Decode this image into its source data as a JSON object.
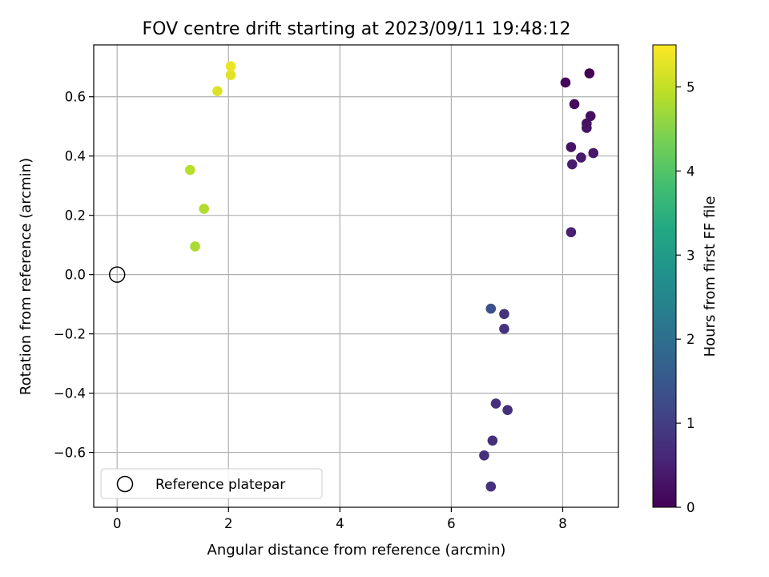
{
  "chart_data": {
    "type": "scatter",
    "title": "FOV centre drift starting at 2023/09/11 19:48:12",
    "xlabel": "Angular distance from reference (arcmin)",
    "ylabel": "Rotation from reference (arcmin)",
    "xlim": [
      -0.42,
      9.0
    ],
    "ylim": [
      -0.785,
      0.775
    ],
    "xticks": [
      0,
      2,
      4,
      6,
      8
    ],
    "xtick_labels": [
      "0",
      "2",
      "4",
      "6",
      "8"
    ],
    "yticks": [
      -0.6,
      -0.4,
      -0.2,
      0.0,
      0.2,
      0.4,
      0.6
    ],
    "ytick_labels": [
      "−0.6",
      "−0.4",
      "−0.2",
      "0.0",
      "0.2",
      "0.4",
      "0.6"
    ],
    "grid": true,
    "colormap": "viridis",
    "colorbar": {
      "label": "Hours from first FF file",
      "range": [
        0,
        5.5
      ],
      "ticks": [
        0,
        1,
        2,
        3,
        4,
        5
      ],
      "tick_labels": [
        "0",
        "1",
        "2",
        "3",
        "4",
        "5"
      ]
    },
    "legend": {
      "position": "lower-left",
      "entries": [
        "Reference platepar"
      ]
    },
    "reference_point": {
      "x": 0.0,
      "y": 0.0,
      "label": "Reference platepar"
    },
    "points": [
      {
        "x": 8.48,
        "y": 0.679,
        "hours": 0.0
      },
      {
        "x": 8.05,
        "y": 0.648,
        "hours": 0.1
      },
      {
        "x": 8.21,
        "y": 0.575,
        "hours": 0.15
      },
      {
        "x": 8.5,
        "y": 0.535,
        "hours": 0.2
      },
      {
        "x": 8.43,
        "y": 0.51,
        "hours": 0.25
      },
      {
        "x": 8.43,
        "y": 0.495,
        "hours": 0.28
      },
      {
        "x": 8.15,
        "y": 0.43,
        "hours": 0.3
      },
      {
        "x": 8.55,
        "y": 0.41,
        "hours": 0.35
      },
      {
        "x": 8.33,
        "y": 0.395,
        "hours": 0.4
      },
      {
        "x": 8.17,
        "y": 0.372,
        "hours": 0.45
      },
      {
        "x": 8.15,
        "y": 0.143,
        "hours": 0.5
      },
      {
        "x": 6.95,
        "y": -0.133,
        "hours": 0.8
      },
      {
        "x": 6.95,
        "y": -0.183,
        "hours": 0.8
      },
      {
        "x": 6.8,
        "y": -0.435,
        "hours": 0.75
      },
      {
        "x": 7.01,
        "y": -0.457,
        "hours": 0.75
      },
      {
        "x": 6.74,
        "y": -0.56,
        "hours": 0.75
      },
      {
        "x": 6.59,
        "y": -0.61,
        "hours": 0.75
      },
      {
        "x": 6.71,
        "y": -0.715,
        "hours": 0.75
      },
      {
        "x": 6.71,
        "y": -0.115,
        "hours": 1.35
      },
      {
        "x": 1.4,
        "y": 0.095,
        "hours": 4.8
      },
      {
        "x": 1.56,
        "y": 0.222,
        "hours": 4.85
      },
      {
        "x": 1.31,
        "y": 0.353,
        "hours": 4.9
      },
      {
        "x": 1.8,
        "y": 0.619,
        "hours": 5.2
      },
      {
        "x": 2.04,
        "y": 0.673,
        "hours": 5.25
      },
      {
        "x": 2.04,
        "y": 0.703,
        "hours": 5.35
      }
    ]
  }
}
